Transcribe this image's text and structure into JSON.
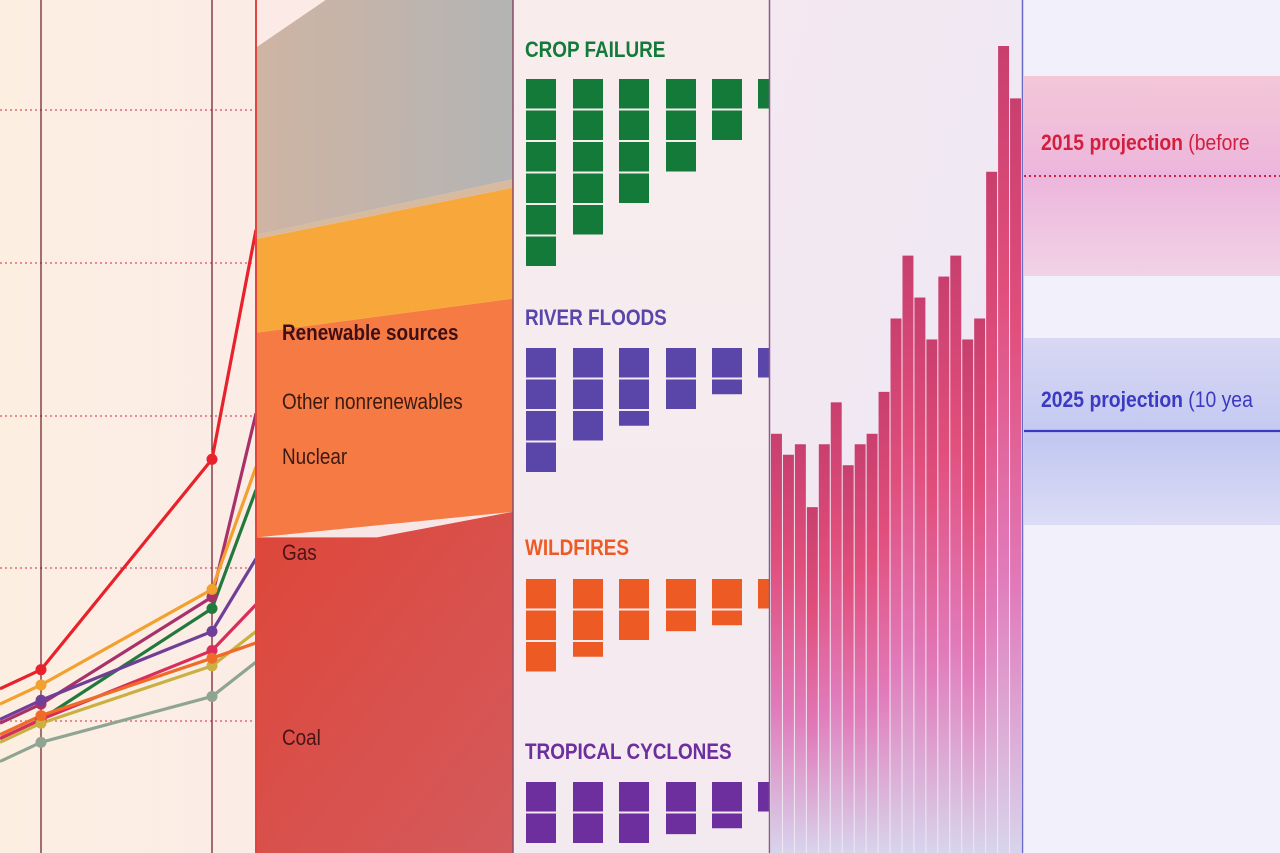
{
  "chart_data": [
    {
      "type": "line",
      "x": [
        1,
        2,
        3
      ],
      "ylim": [
        0,
        100
      ],
      "grid": true,
      "colors": {
        "background": "#fbeee4",
        "grid": "#d6535f",
        "axis": "#6a1824"
      },
      "series": [
        {
          "color": "#e8212b",
          "values": [
            10.5,
            38.0,
            68.0
          ]
        },
        {
          "color": "#a8316a",
          "values": [
            6.0,
            20.0,
            44.0
          ]
        },
        {
          "color": "#f2a02e",
          "values": [
            8.5,
            21.0,
            37.0
          ]
        },
        {
          "color": "#23793d",
          "values": [
            4.0,
            18.5,
            34.0
          ]
        },
        {
          "color": "#6f3e96",
          "values": [
            6.5,
            15.5,
            25.0
          ]
        },
        {
          "color": "#d92d5a",
          "values": [
            4.0,
            13.0,
            19.0
          ]
        },
        {
          "color": "#c9b041",
          "values": [
            3.5,
            11.0,
            15.5
          ]
        },
        {
          "color": "#ee6b28",
          "values": [
            4.5,
            12.0,
            14.0
          ]
        },
        {
          "color": "#8fa592",
          "values": [
            1.0,
            7.0,
            11.5
          ]
        }
      ]
    },
    {
      "type": "area",
      "x": [
        0,
        1
      ],
      "ylim": [
        0,
        100
      ],
      "series": [
        {
          "name": "Coal",
          "color": "#d9473f",
          "values": [
            37,
            40
          ]
        },
        {
          "name": "Gas",
          "color": "#f27642",
          "values": [
            24,
            25
          ]
        },
        {
          "name": "Nuclear",
          "color": "#f9a83a",
          "values": [
            11,
            13
          ]
        },
        {
          "name": "Other nonrenewables",
          "color": "#d6b7a3",
          "values": [
            0.5,
            1
          ]
        },
        {
          "name": "Renewable sources",
          "color": "#c3b3ad",
          "values": [
            22,
            36
          ]
        }
      ]
    },
    {
      "type": "bar",
      "layout": "stacked-blocks",
      "panels": [
        {
          "title": "CROP FAILURE",
          "color": "#137a3a",
          "values": [
            6,
            5,
            4,
            3,
            2,
            1
          ]
        },
        {
          "title": "RIVER FLOODS",
          "color": "#5a46a8",
          "values": [
            4,
            3,
            2.5,
            2,
            1.5,
            1
          ]
        },
        {
          "title": "WILDFIRES",
          "color": "#ee5a23",
          "values": [
            3,
            2.5,
            2,
            1.7,
            1.5,
            1
          ]
        },
        {
          "title": "TROPICAL CYCLONES",
          "color": "#6d2e9e",
          "values": [
            2,
            2,
            2,
            1.7,
            1.5,
            1
          ]
        }
      ]
    },
    {
      "type": "bar",
      "values": [
        40,
        38,
        39,
        33,
        39,
        43,
        37,
        39,
        40,
        44,
        51,
        57,
        53,
        49,
        55,
        57,
        49,
        51,
        65,
        77,
        72
      ],
      "ylim": [
        0,
        77
      ],
      "colors": {
        "top": "#e14e7c",
        "bottom": "#dcd4ea"
      }
    },
    {
      "type": "table",
      "rows": [
        {
          "label": "2015 projection",
          "note": "(before",
          "color": "#d31f3e"
        },
        {
          "label": "2025 projection",
          "note": "(10 yea",
          "color": "#3a3ac2"
        }
      ]
    }
  ]
}
